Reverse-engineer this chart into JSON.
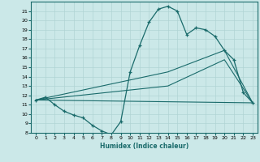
{
  "xlabel": "Humidex (Indice chaleur)",
  "background_color": "#cbe8e8",
  "line_color": "#1a6b6b",
  "grid_color": "#b0d4d4",
  "xlim": [
    -0.5,
    23.5
  ],
  "ylim": [
    8,
    22
  ],
  "x_ticks": [
    0,
    1,
    2,
    3,
    4,
    5,
    6,
    7,
    8,
    9,
    10,
    11,
    12,
    13,
    14,
    15,
    16,
    17,
    18,
    19,
    20,
    21,
    22,
    23
  ],
  "y_ticks": [
    8,
    9,
    10,
    11,
    12,
    13,
    14,
    15,
    16,
    17,
    18,
    19,
    20,
    21
  ],
  "line1_x": [
    0,
    1,
    2,
    3,
    4,
    5,
    6,
    7,
    8,
    9,
    10,
    11,
    12,
    13,
    14,
    15,
    16,
    17,
    18,
    19,
    20,
    21,
    22,
    23
  ],
  "line1_y": [
    11.5,
    11.8,
    11.0,
    10.3,
    9.9,
    9.6,
    8.8,
    8.2,
    7.8,
    9.2,
    14.5,
    17.3,
    19.8,
    21.2,
    21.5,
    21.0,
    18.5,
    19.2,
    19.0,
    18.3,
    16.8,
    15.8,
    12.3,
    11.2
  ],
  "line2_x": [
    0,
    23
  ],
  "line2_y": [
    11.5,
    11.2
  ],
  "line3_x": [
    0,
    14,
    20,
    23
  ],
  "line3_y": [
    11.5,
    14.5,
    16.8,
    11.2
  ],
  "line4_x": [
    0,
    14,
    20,
    23
  ],
  "line4_y": [
    11.5,
    13.0,
    15.8,
    11.2
  ]
}
